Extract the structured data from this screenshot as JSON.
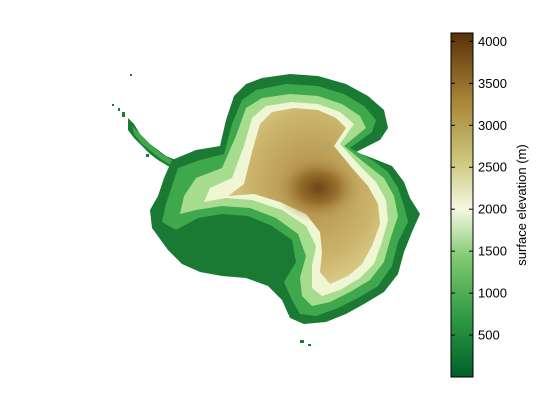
{
  "colorbar": {
    "label": "surface elevation (m)",
    "min": 0,
    "max": 4100,
    "ticks": [
      {
        "value": 500,
        "label": "500"
      },
      {
        "value": 1000,
        "label": "1000"
      },
      {
        "value": 1500,
        "label": "1500"
      },
      {
        "value": 2000,
        "label": "2000"
      },
      {
        "value": 2500,
        "label": "2500"
      },
      {
        "value": 3000,
        "label": "3000"
      },
      {
        "value": 3500,
        "label": "3500"
      },
      {
        "value": 4000,
        "label": "4000"
      }
    ],
    "gradient_stops": [
      {
        "value": 0,
        "color": "#00602a"
      },
      {
        "value": 700,
        "color": "#2e9a44"
      },
      {
        "value": 1400,
        "color": "#7cc86e"
      },
      {
        "value": 2000,
        "color": "#f4f8df"
      },
      {
        "value": 2600,
        "color": "#c9c57a"
      },
      {
        "value": 3300,
        "color": "#a88436"
      },
      {
        "value": 4100,
        "color": "#5a3008"
      }
    ]
  },
  "map": {
    "colors": {
      "coast": "#1a7a34",
      "low": "#3fa84c",
      "mid": "#a6dc8e",
      "band": "#eef6d4",
      "plateau": "#cdb66a",
      "high": "#a8803c",
      "dome": "#7b4f1c"
    }
  }
}
